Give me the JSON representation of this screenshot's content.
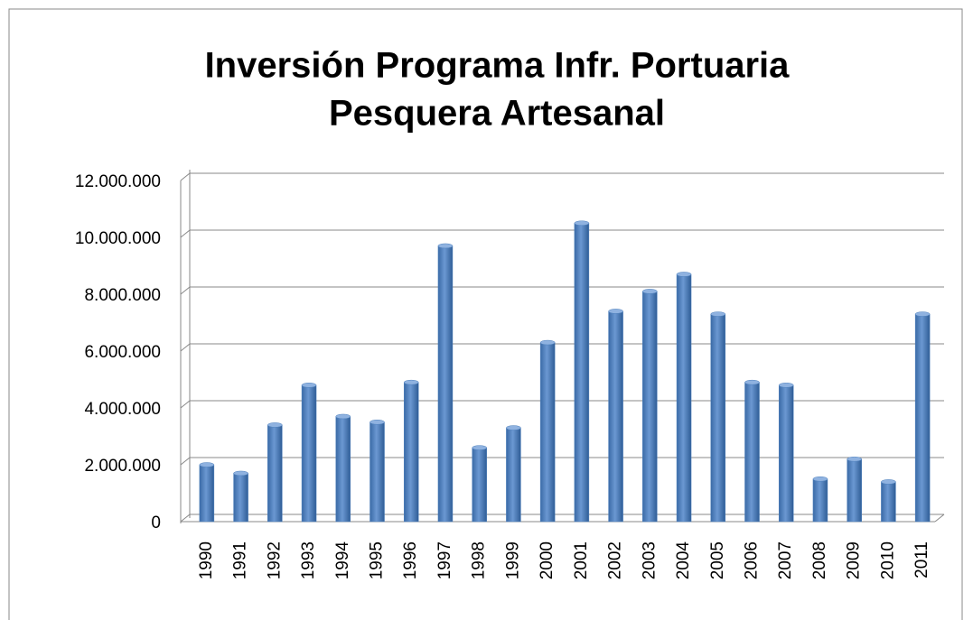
{
  "chart_data": {
    "type": "bar",
    "title": [
      "Inversión Programa Infr. Portuaria",
      "Pesquera Artesanal"
    ],
    "categories": [
      "1990",
      "1991",
      "1992",
      "1993",
      "1994",
      "1995",
      "1996",
      "1997",
      "1998",
      "1999",
      "2000",
      "2001",
      "2002",
      "2003",
      "2004",
      "2005",
      "2006",
      "2007",
      "2008",
      "2009",
      "2010",
      "2011"
    ],
    "values": [
      2000000,
      1700000,
      3400000,
      4800000,
      3700000,
      3500000,
      4900000,
      9700000,
      2600000,
      3300000,
      6300000,
      10500000,
      7400000,
      8100000,
      8700000,
      7300000,
      4900000,
      4800000,
      1500000,
      2200000,
      1400000,
      7300000
    ],
    "color": "#4f81bd",
    "ylim": [
      0,
      12000000
    ],
    "yticks": [
      0,
      {
        "value": 2000000,
        "label": "2.000.000"
      },
      {
        "value": 4000000,
        "label": "4.000.000"
      },
      {
        "value": 6000000,
        "label": "6.000.000"
      },
      {
        "value": 8000000,
        "label": "8.000.000"
      },
      {
        "value": 10000000,
        "label": "10.000.000"
      },
      {
        "value": 12000000,
        "label": "12.000.000"
      }
    ],
    "grid": true
  }
}
